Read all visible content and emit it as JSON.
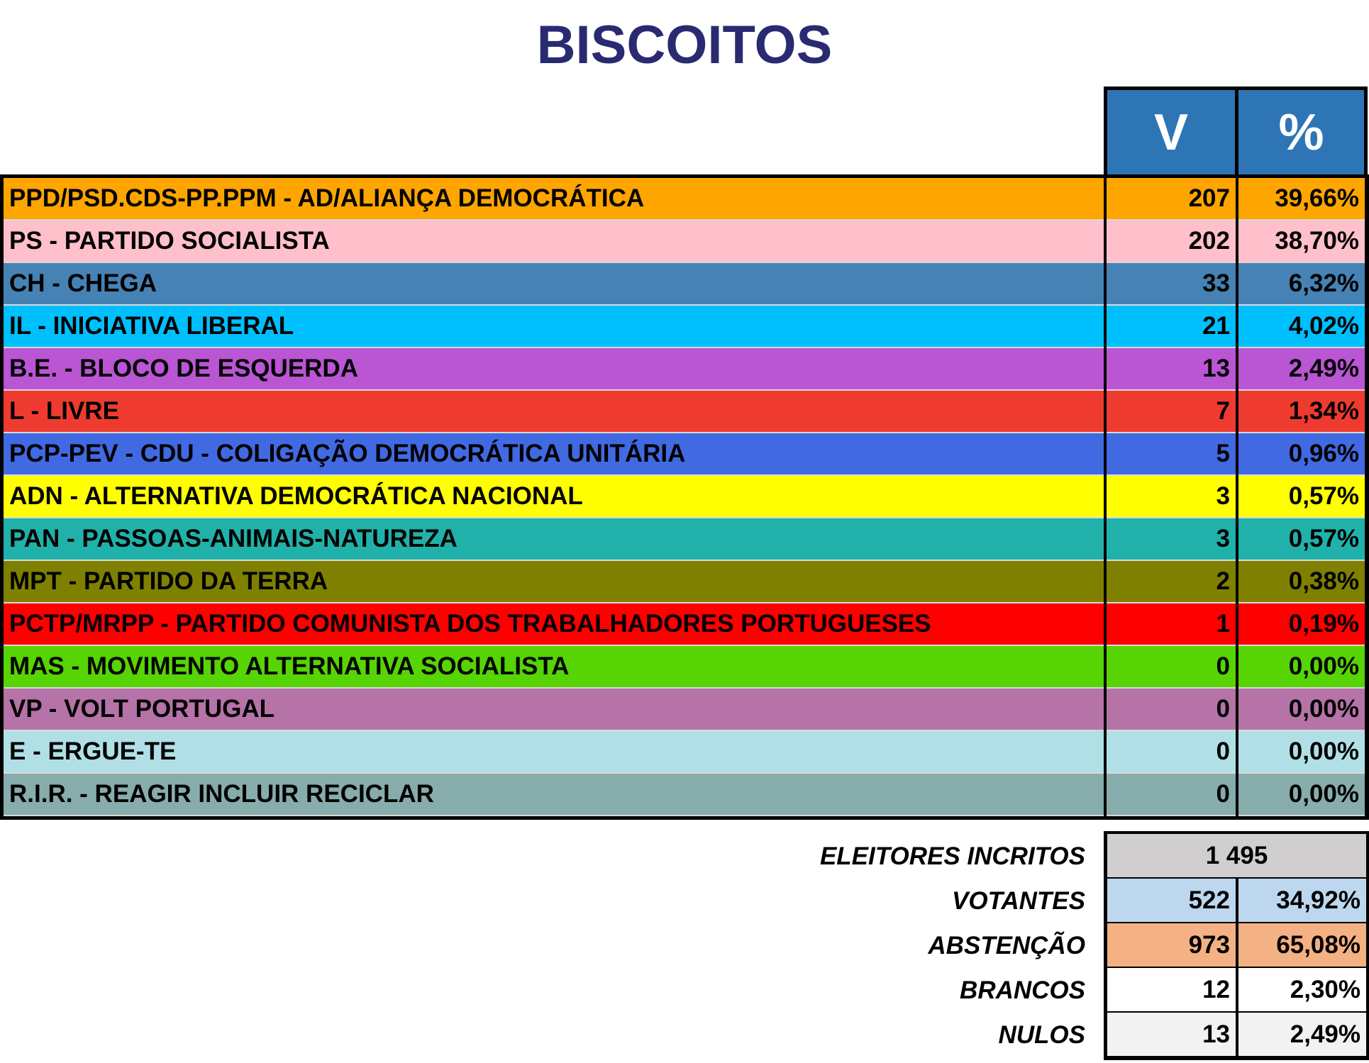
{
  "title": "BISCOITOS",
  "header": {
    "votes": "V",
    "percent": "%",
    "color": "#2e75b6"
  },
  "rows": [
    {
      "party": "PPD/PSD.CDS-PP.PPM - AD/ALIANÇA DEMOCRÁTICA",
      "votes": "207",
      "percent": "39,66%",
      "color": "#ffa500"
    },
    {
      "party": "PS - PARTIDO SOCIALISTA",
      "votes": "202",
      "percent": "38,70%",
      "color": "#ffc0cb"
    },
    {
      "party": "CH - CHEGA",
      "votes": "33",
      "percent": "6,32%",
      "color": "#4682b4"
    },
    {
      "party": "IL - INICIATIVA LIBERAL",
      "votes": "21",
      "percent": "4,02%",
      "color": "#00bfff"
    },
    {
      "party": "B.E. - BLOCO DE ESQUERDA",
      "votes": "13",
      "percent": "2,49%",
      "color": "#ba55d3"
    },
    {
      "party": "L - LIVRE",
      "votes": "7",
      "percent": "1,34%",
      "color": "#ef3b2f"
    },
    {
      "party": "PCP-PEV - CDU - COLIGAÇÃO DEMOCRÁTICA UNITÁRIA",
      "votes": "5",
      "percent": "0,96%",
      "color": "#4169e1"
    },
    {
      "party": "ADN - ALTERNATIVA DEMOCRÁTICA NACIONAL",
      "votes": "3",
      "percent": "0,57%",
      "color": "#ffff00"
    },
    {
      "party": "PAN - PASSOAS-ANIMAIS-NATUREZA",
      "votes": "3",
      "percent": "0,57%",
      "color": "#20b2aa"
    },
    {
      "party": "MPT - PARTIDO DA TERRA",
      "votes": "2",
      "percent": "0,38%",
      "color": "#808000"
    },
    {
      "party": "PCTP/MRPP - PARTIDO COMUNISTA DOS TRABALHADORES PORTUGUESES",
      "votes": "1",
      "percent": "0,19%",
      "color": "#ff0000"
    },
    {
      "party": "MAS - MOVIMENTO ALTERNATIVA SOCIALISTA",
      "votes": "0",
      "percent": "0,00%",
      "color": "#56d404"
    },
    {
      "party": "VP - VOLT PORTUGAL",
      "votes": "0",
      "percent": "0,00%",
      "color": "#b573a8"
    },
    {
      "party": "E - ERGUE-TE",
      "votes": "0",
      "percent": "0,00%",
      "color": "#b0e0e6"
    },
    {
      "party": "R.I.R. - REAGIR INCLUIR RECICLAR",
      "votes": "0",
      "percent": "0,00%",
      "color": "#87acac"
    }
  ],
  "summary": {
    "registered": {
      "label": "ELEITORES INCRITOS",
      "value": "1 495",
      "color": "#d0cece"
    },
    "rows": [
      {
        "label": "VOTANTES",
        "votes": "522",
        "percent": "34,92%",
        "color": "#bdd7ee"
      },
      {
        "label": "ABSTENÇÃO",
        "votes": "973",
        "percent": "65,08%",
        "color": "#f4b183"
      },
      {
        "label": "BRANCOS",
        "votes": "12",
        "percent": "2,30%",
        "color": "#ffffff"
      },
      {
        "label": "NULOS",
        "votes": "13",
        "percent": "2,49%",
        "color": "#f2f2f2"
      }
    ]
  }
}
